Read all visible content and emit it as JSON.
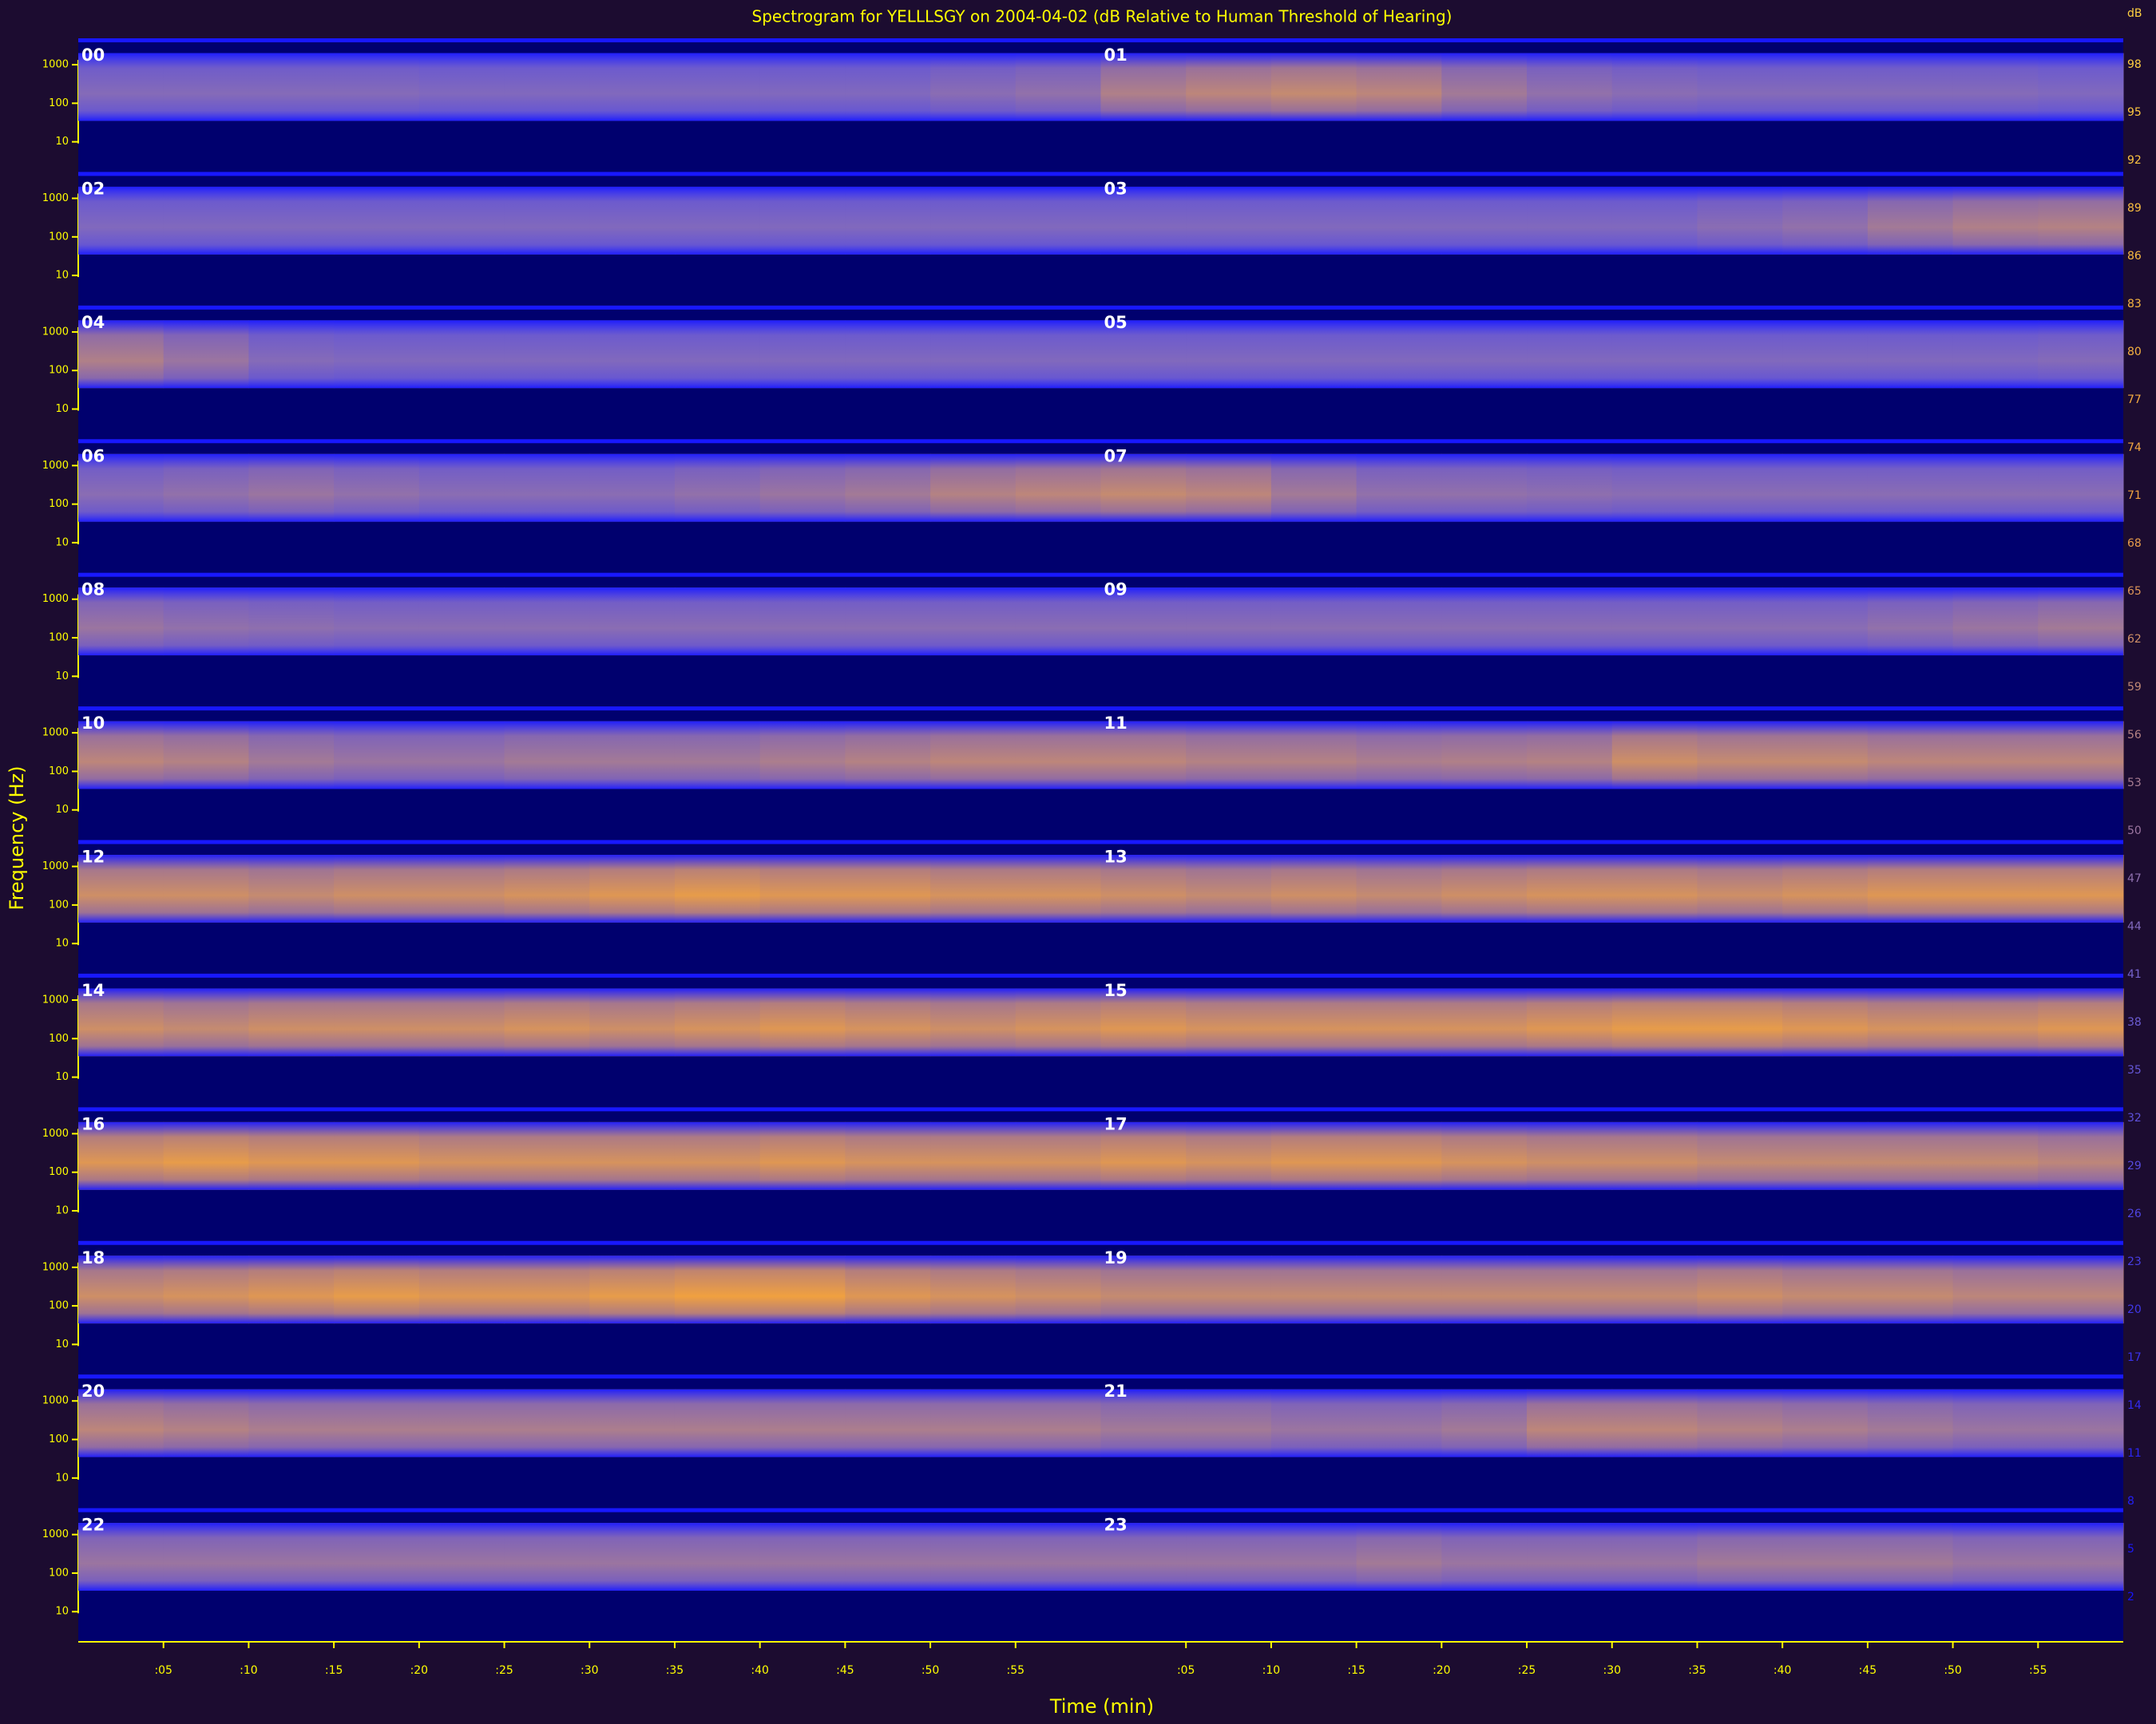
{
  "chart_data": {
    "type": "spectrogram",
    "title": "Spectrogram for YELLLSGY on 2004-04-02 (dB Relative to Human Threshold of Hearing)",
    "xlabel": "Time (min)",
    "ylabel": "Frequency (Hz)",
    "colorbar_label": "dB",
    "ylog": true,
    "ylim": [
      2,
      4000
    ],
    "yticks": [
      1000,
      100,
      10
    ],
    "freq_range": [
      35,
      2000
    ],
    "xlim": [
      0,
      60
    ],
    "xticks": [
      {
        "value": 5,
        "label": ":05"
      },
      {
        "value": 10,
        "label": ":10"
      },
      {
        "value": 15,
        "label": ":15"
      },
      {
        "value": 20,
        "label": ":20"
      },
      {
        "value": 25,
        "label": ":25"
      },
      {
        "value": 30,
        "label": ":30"
      },
      {
        "value": 35,
        "label": ":35"
      },
      {
        "value": 40,
        "label": ":40"
      },
      {
        "value": 45,
        "label": ":45"
      },
      {
        "value": 50,
        "label": ":50"
      },
      {
        "value": 55,
        "label": ":55"
      }
    ],
    "bins": [
      0,
      5,
      10,
      15,
      20,
      25,
      30,
      35,
      40,
      45,
      50,
      55,
      60
    ],
    "clim": [
      0,
      100
    ],
    "cticks": [
      2,
      5,
      8,
      11,
      14,
      17,
      20,
      23,
      26,
      29,
      32,
      35,
      38,
      41,
      44,
      47,
      50,
      53,
      56,
      59,
      62,
      65,
      68,
      71,
      74,
      77,
      80,
      83,
      86,
      89,
      92,
      95,
      98
    ],
    "colormap": [
      {
        "value": 0,
        "color": "#1010ff"
      },
      {
        "value": 40,
        "color": "#7060d0"
      },
      {
        "value": 70,
        "color": "#f0a040"
      },
      {
        "value": 100,
        "color": "#ffd040"
      }
    ],
    "axis_color": "#ffff00",
    "panels": [
      {
        "name": "00",
        "values": [
          45,
          45,
          45,
          45,
          44,
          44,
          44,
          44,
          44,
          44,
          46,
          48
        ]
      },
      {
        "name": "01",
        "values": [
          55,
          58,
          60,
          58,
          52,
          48,
          46,
          45,
          45,
          45,
          45,
          44
        ]
      },
      {
        "name": "02",
        "values": [
          44,
          44,
          44,
          44,
          44,
          44,
          44,
          44,
          44,
          44,
          44,
          44
        ]
      },
      {
        "name": "03",
        "values": [
          44,
          44,
          44,
          44,
          44,
          44,
          44,
          46,
          48,
          52,
          55,
          56
        ]
      },
      {
        "name": "04",
        "values": [
          55,
          50,
          45,
          44,
          44,
          44,
          44,
          44,
          44,
          44,
          44,
          44
        ]
      },
      {
        "name": "05",
        "values": [
          44,
          44,
          44,
          44,
          44,
          44,
          44,
          44,
          44,
          44,
          44,
          45
        ]
      },
      {
        "name": "06",
        "values": [
          46,
          48,
          50,
          48,
          46,
          46,
          46,
          48,
          50,
          52,
          56,
          58
        ]
      },
      {
        "name": "07",
        "values": [
          60,
          58,
          52,
          48,
          48,
          47,
          46,
          46,
          46,
          46,
          46,
          46
        ]
      },
      {
        "name": "08",
        "values": [
          50,
          48,
          47,
          46,
          46,
          46,
          46,
          46,
          46,
          46,
          46,
          46
        ]
      },
      {
        "name": "09",
        "values": [
          46,
          46,
          46,
          46,
          46,
          46,
          46,
          46,
          46,
          48,
          50,
          52
        ]
      },
      {
        "name": "10",
        "values": [
          58,
          56,
          52,
          50,
          50,
          52,
          52,
          52,
          54,
          56,
          58,
          58
        ]
      },
      {
        "name": "11",
        "values": [
          58,
          56,
          56,
          54,
          55,
          56,
          62,
          60,
          60,
          58,
          58,
          58
        ]
      },
      {
        "name": "12",
        "values": [
          62,
          62,
          60,
          62,
          62,
          64,
          66,
          68,
          66,
          66,
          64,
          64
        ]
      },
      {
        "name": "13",
        "values": [
          62,
          60,
          62,
          60,
          62,
          64,
          64,
          62,
          64,
          66,
          66,
          66
        ]
      },
      {
        "name": "14",
        "values": [
          62,
          60,
          62,
          62,
          62,
          64,
          62,
          64,
          66,
          64,
          62,
          64
        ]
      },
      {
        "name": "15",
        "values": [
          66,
          64,
          64,
          64,
          64,
          66,
          68,
          68,
          66,
          64,
          64,
          66
        ]
      },
      {
        "name": "16",
        "values": [
          66,
          68,
          66,
          66,
          64,
          64,
          64,
          64,
          66,
          64,
          64,
          64
        ]
      },
      {
        "name": "17",
        "values": [
          66,
          64,
          66,
          66,
          64,
          62,
          62,
          60,
          60,
          60,
          60,
          58
        ]
      },
      {
        "name": "18",
        "values": [
          62,
          64,
          66,
          68,
          66,
          66,
          68,
          70,
          70,
          66,
          64,
          62
        ]
      },
      {
        "name": "19",
        "values": [
          60,
          60,
          60,
          60,
          60,
          60,
          60,
          62,
          60,
          60,
          58,
          58
        ]
      },
      {
        "name": "20",
        "values": [
          58,
          56,
          54,
          54,
          54,
          54,
          54,
          54,
          54,
          54,
          54,
          54
        ]
      },
      {
        "name": "21",
        "values": [
          52,
          52,
          50,
          50,
          52,
          58,
          58,
          56,
          54,
          52,
          50,
          50
        ]
      },
      {
        "name": "22",
        "values": [
          50,
          50,
          50,
          50,
          50,
          50,
          50,
          50,
          50,
          50,
          50,
          50
        ]
      },
      {
        "name": "23",
        "values": [
          50,
          50,
          50,
          52,
          50,
          50,
          50,
          52,
          52,
          52,
          50,
          50
        ]
      }
    ]
  }
}
